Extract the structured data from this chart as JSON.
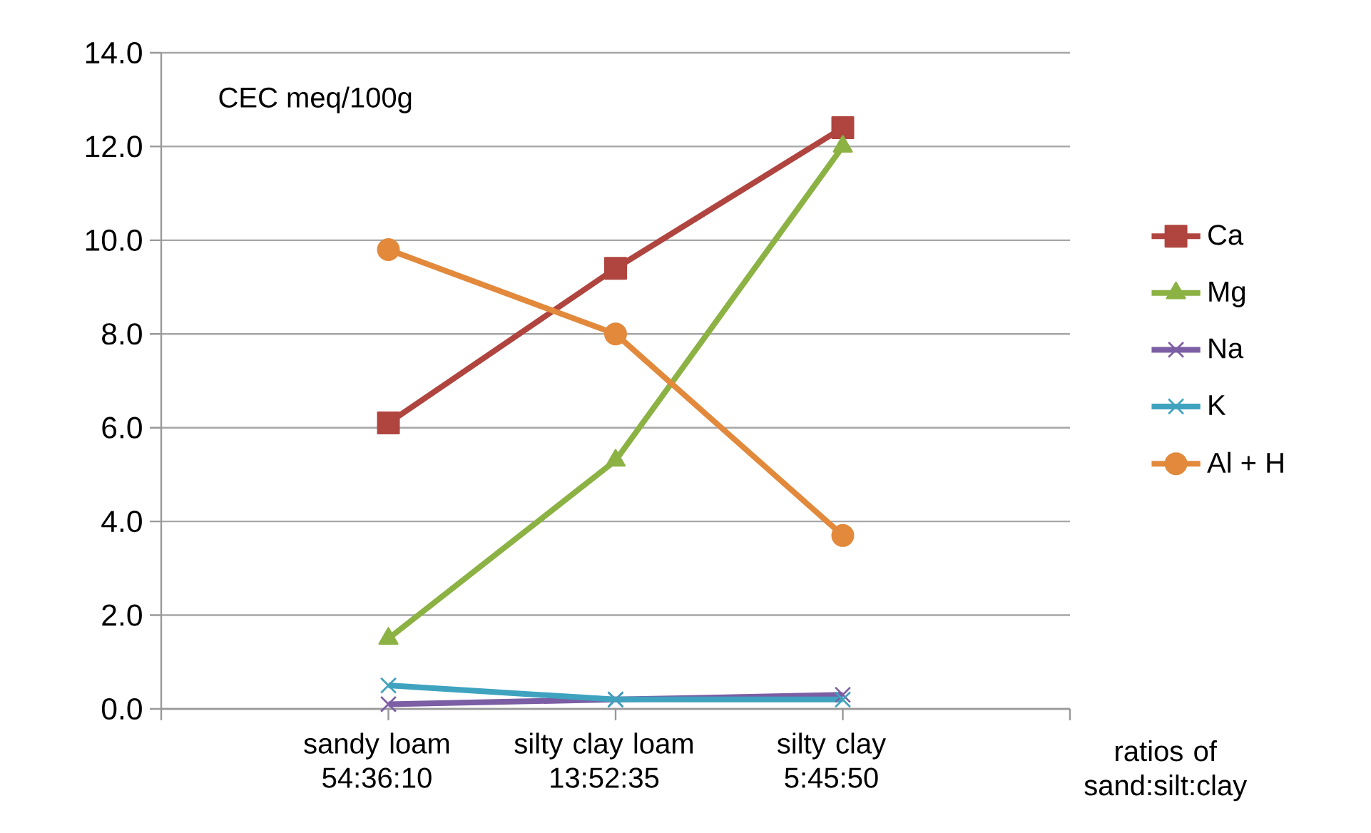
{
  "chart_data": {
    "type": "line",
    "ylabel": "CEC meq/100g",
    "xlabel": "ratios of sand:silt:clay",
    "categories": [
      null,
      "sandy loam 54:36:10",
      "silty clay loam 13:52:35",
      "silty clay 5:45:50",
      null
    ],
    "ylim": [
      0,
      14
    ],
    "yticks": [
      {
        "value": 0,
        "label": "0.0"
      },
      {
        "value": 2,
        "label": "2.0"
      },
      {
        "value": 4,
        "label": "4.0"
      },
      {
        "value": 6,
        "label": "6.0"
      },
      {
        "value": 8,
        "label": "8.0"
      },
      {
        "value": 10,
        "label": "10.0"
      },
      {
        "value": 12,
        "label": "12.0"
      },
      {
        "value": 14,
        "label": "14.0"
      }
    ],
    "grid": "y",
    "legend": "right",
    "line_style": "solid",
    "series": [
      {
        "name": "Ca",
        "color": "#b0443f",
        "marker": "square",
        "values": [
          null,
          6.1,
          9.4,
          12.4,
          null
        ]
      },
      {
        "name": "Mg",
        "color": "#8cb244",
        "marker": "triangle",
        "values": [
          null,
          1.5,
          5.3,
          12.0,
          null
        ]
      },
      {
        "name": "Na",
        "color": "#7b5ea4",
        "marker": "cross",
        "values": [
          null,
          0.1,
          0.2,
          0.3,
          null
        ]
      },
      {
        "name": "K",
        "color": "#3fa3bf",
        "marker": "cross",
        "values": [
          null,
          0.5,
          0.2,
          0.2,
          null
        ]
      },
      {
        "name": "Al + H",
        "color": "#e2893b",
        "marker": "circle",
        "values": [
          null,
          9.8,
          8.0,
          3.7,
          null
        ]
      }
    ]
  }
}
